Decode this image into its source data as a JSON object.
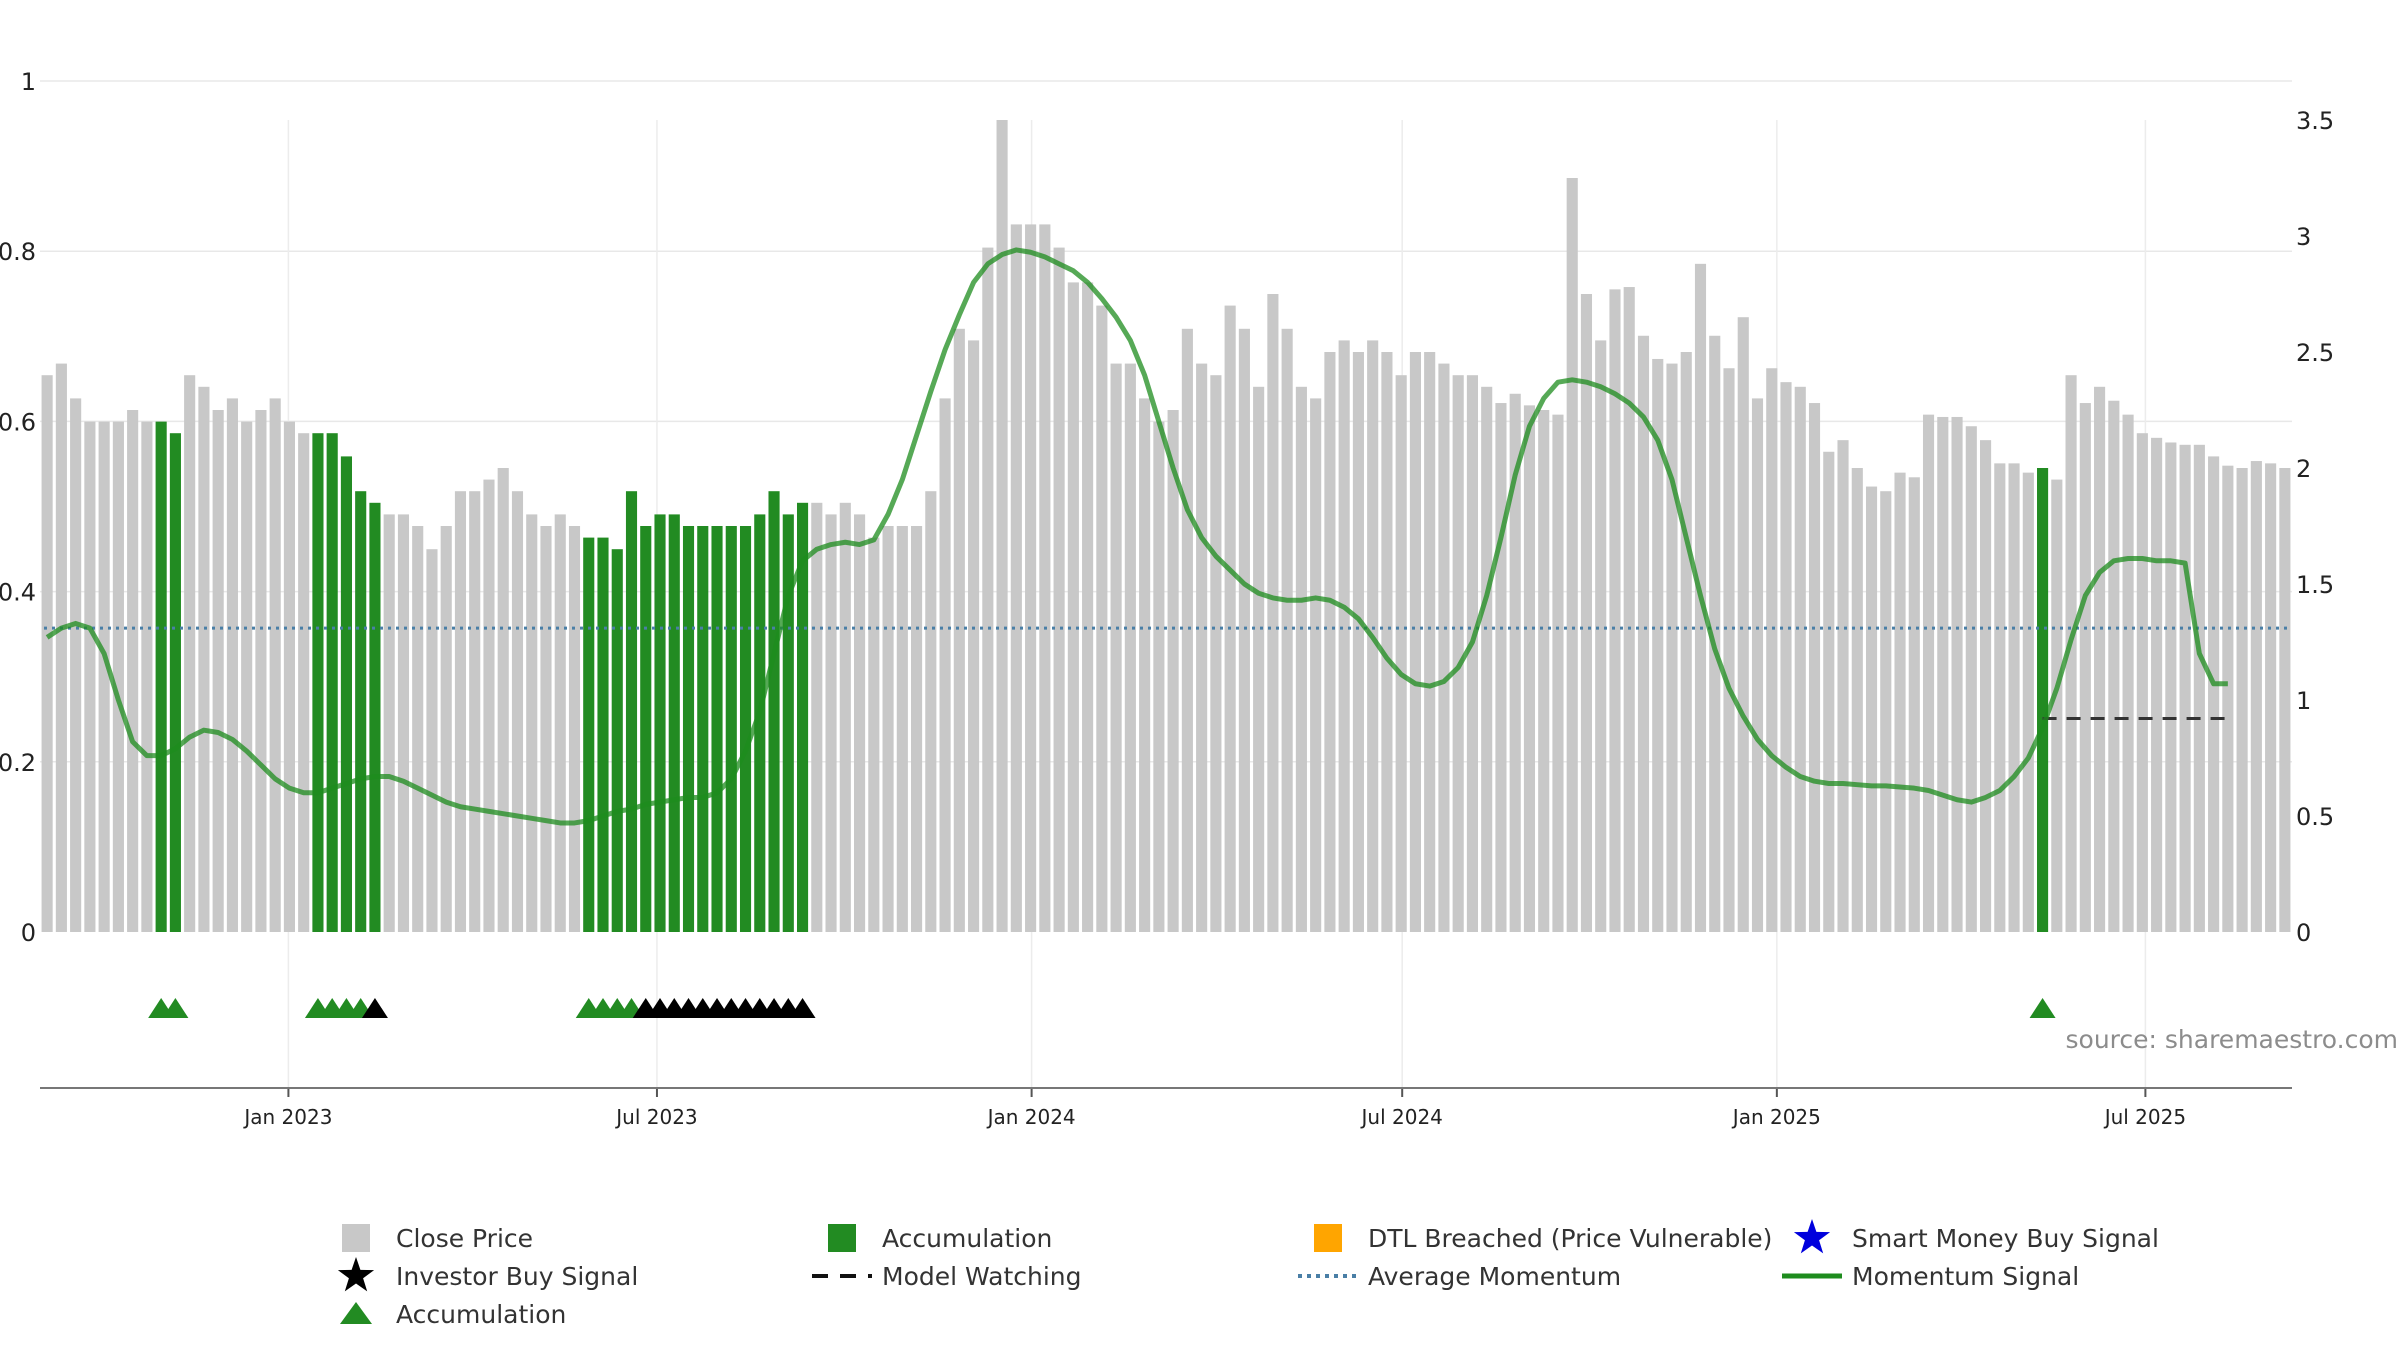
{
  "source_text": "source: sharemaestro.com",
  "colors": {
    "close_price": "#c8c8c8",
    "accumulation": "#228b22",
    "dtl": "#ffa500",
    "smart_money": "#0000dd",
    "momentum": "#1e8c1e",
    "avg_momentum": "#4a7fa6",
    "investor": "#000000",
    "model_watching": "#333333",
    "grid": "#e8e8e8"
  },
  "chart_data": {
    "type": "bar",
    "title": "",
    "x_start": "2022-09-01",
    "bar_interval_days": 7,
    "x_ticks": [
      "Jan 2023",
      "Jul 2023",
      "Jan 2024",
      "Jul 2024",
      "Jan 2025",
      "Jul 2025"
    ],
    "left_axis": {
      "range": [
        0,
        1
      ],
      "ticks": [
        "0",
        "0.2",
        "0.4",
        "0.6",
        "0.8",
        "1"
      ]
    },
    "right_axis": {
      "range": [
        0,
        3.5
      ],
      "ticks": [
        "0",
        "0.5",
        "1",
        "1.5",
        "2",
        "2.5",
        "3",
        "3.5"
      ]
    },
    "close_price": [
      2.4,
      2.45,
      2.3,
      2.2,
      2.2,
      2.2,
      2.25,
      2.2,
      2.2,
      2.15,
      2.4,
      2.35,
      2.25,
      2.3,
      2.2,
      2.25,
      2.3,
      2.2,
      2.15,
      2.15,
      2.15,
      2.05,
      1.9,
      1.85,
      1.8,
      1.8,
      1.75,
      1.65,
      1.75,
      1.9,
      1.9,
      1.95,
      2.0,
      1.9,
      1.8,
      1.75,
      1.8,
      1.75,
      1.7,
      1.7,
      1.65,
      1.9,
      1.75,
      1.8,
      1.8,
      1.75,
      1.75,
      1.75,
      1.75,
      1.75,
      1.8,
      1.9,
      1.8,
      1.85,
      1.85,
      1.8,
      1.85,
      1.8,
      1.7,
      1.75,
      1.75,
      1.75,
      1.9,
      2.3,
      2.6,
      2.55,
      2.95,
      3.5,
      3.05,
      3.05,
      3.05,
      2.95,
      2.8,
      2.8,
      2.7,
      2.45,
      2.45,
      2.3,
      2.2,
      2.25,
      2.6,
      2.45,
      2.4,
      2.7,
      2.6,
      2.35,
      2.75,
      2.6,
      2.35,
      2.3,
      2.5,
      2.55,
      2.5,
      2.55,
      2.5,
      2.4,
      2.5,
      2.5,
      2.45,
      2.4,
      2.4,
      2.35,
      2.28,
      2.32,
      2.27,
      2.25,
      2.23,
      3.25,
      2.75,
      2.55,
      2.77,
      2.78,
      2.57,
      2.47,
      2.45,
      2.5,
      2.88,
      2.57,
      2.43,
      2.65,
      2.3,
      2.43,
      2.37,
      2.35,
      2.28,
      2.07,
      2.12,
      2.0,
      1.92,
      1.9,
      1.98,
      1.96,
      2.23,
      2.22,
      2.22,
      2.18,
      2.12,
      2.02,
      2.02,
      1.98,
      2.0,
      1.95,
      2.4,
      2.28,
      2.35,
      2.29,
      2.23,
      2.15,
      2.13,
      2.11,
      2.1,
      2.1,
      2.05,
      2.01,
      2.0,
      2.03,
      2.02,
      2.0
    ],
    "accumulation_indices": [
      8,
      9,
      19,
      20,
      21,
      22,
      23,
      38,
      39,
      40,
      41,
      42,
      43,
      44,
      45,
      46,
      47,
      48,
      49,
      50,
      51,
      52,
      53,
      140
    ],
    "momentum_signal": [
      [
        0,
        1.27
      ],
      [
        1,
        1.31
      ],
      [
        2,
        1.33
      ],
      [
        3,
        1.31
      ],
      [
        4,
        1.2
      ],
      [
        5,
        1.0
      ],
      [
        6,
        0.82
      ],
      [
        7,
        0.76
      ],
      [
        8,
        0.76
      ],
      [
        9,
        0.79
      ],
      [
        10,
        0.84
      ],
      [
        11,
        0.87
      ],
      [
        12,
        0.86
      ],
      [
        13,
        0.83
      ],
      [
        14,
        0.78
      ],
      [
        15,
        0.72
      ],
      [
        16,
        0.66
      ],
      [
        17,
        0.62
      ],
      [
        18,
        0.6
      ],
      [
        19,
        0.6
      ],
      [
        20,
        0.62
      ],
      [
        21,
        0.64
      ],
      [
        22,
        0.66
      ],
      [
        23,
        0.67
      ],
      [
        24,
        0.67
      ],
      [
        25,
        0.65
      ],
      [
        26,
        0.62
      ],
      [
        27,
        0.59
      ],
      [
        28,
        0.56
      ],
      [
        29,
        0.54
      ],
      [
        30,
        0.53
      ],
      [
        31,
        0.52
      ],
      [
        32,
        0.51
      ],
      [
        33,
        0.5
      ],
      [
        34,
        0.49
      ],
      [
        35,
        0.48
      ],
      [
        36,
        0.47
      ],
      [
        37,
        0.47
      ],
      [
        38,
        0.48
      ],
      [
        39,
        0.5
      ],
      [
        40,
        0.52
      ],
      [
        41,
        0.53
      ],
      [
        42,
        0.55
      ],
      [
        43,
        0.56
      ],
      [
        44,
        0.57
      ],
      [
        45,
        0.58
      ],
      [
        46,
        0.58
      ],
      [
        47,
        0.6
      ],
      [
        48,
        0.66
      ],
      [
        49,
        0.78
      ],
      [
        50,
        0.95
      ],
      [
        51,
        1.2
      ],
      [
        52,
        1.45
      ],
      [
        53,
        1.6
      ],
      [
        54,
        1.65
      ],
      [
        55,
        1.67
      ],
      [
        56,
        1.68
      ],
      [
        57,
        1.67
      ],
      [
        58,
        1.69
      ],
      [
        59,
        1.8
      ],
      [
        60,
        1.95
      ],
      [
        61,
        2.14
      ],
      [
        62,
        2.33
      ],
      [
        63,
        2.51
      ],
      [
        64,
        2.66
      ],
      [
        65,
        2.8
      ],
      [
        66,
        2.88
      ],
      [
        67,
        2.92
      ],
      [
        68,
        2.94
      ],
      [
        69,
        2.93
      ],
      [
        70,
        2.91
      ],
      [
        71,
        2.88
      ],
      [
        72,
        2.85
      ],
      [
        73,
        2.8
      ],
      [
        74,
        2.73
      ],
      [
        75,
        2.65
      ],
      [
        76,
        2.55
      ],
      [
        77,
        2.4
      ],
      [
        78,
        2.2
      ],
      [
        79,
        2.0
      ],
      [
        80,
        1.82
      ],
      [
        81,
        1.7
      ],
      [
        82,
        1.62
      ],
      [
        83,
        1.56
      ],
      [
        84,
        1.5
      ],
      [
        85,
        1.46
      ],
      [
        86,
        1.44
      ],
      [
        87,
        1.43
      ],
      [
        88,
        1.43
      ],
      [
        89,
        1.44
      ],
      [
        90,
        1.43
      ],
      [
        91,
        1.4
      ],
      [
        92,
        1.35
      ],
      [
        93,
        1.27
      ],
      [
        94,
        1.18
      ],
      [
        95,
        1.11
      ],
      [
        96,
        1.07
      ],
      [
        97,
        1.06
      ],
      [
        98,
        1.08
      ],
      [
        99,
        1.14
      ],
      [
        100,
        1.25
      ],
      [
        101,
        1.45
      ],
      [
        102,
        1.7
      ],
      [
        103,
        1.97
      ],
      [
        104,
        2.18
      ],
      [
        105,
        2.3
      ],
      [
        106,
        2.37
      ],
      [
        107,
        2.38
      ],
      [
        108,
        2.37
      ],
      [
        109,
        2.35
      ],
      [
        110,
        2.32
      ],
      [
        111,
        2.28
      ],
      [
        112,
        2.22
      ],
      [
        113,
        2.12
      ],
      [
        114,
        1.95
      ],
      [
        115,
        1.7
      ],
      [
        116,
        1.45
      ],
      [
        117,
        1.22
      ],
      [
        118,
        1.05
      ],
      [
        119,
        0.93
      ],
      [
        120,
        0.83
      ],
      [
        121,
        0.76
      ],
      [
        122,
        0.71
      ],
      [
        123,
        0.67
      ],
      [
        124,
        0.65
      ],
      [
        125,
        0.64
      ],
      [
        126,
        0.64
      ],
      [
        127,
        0.635
      ],
      [
        128,
        0.63
      ],
      [
        129,
        0.63
      ],
      [
        130,
        0.625
      ],
      [
        131,
        0.62
      ],
      [
        132,
        0.61
      ],
      [
        133,
        0.59
      ],
      [
        134,
        0.57
      ],
      [
        135,
        0.56
      ],
      [
        136,
        0.58
      ],
      [
        137,
        0.61
      ],
      [
        138,
        0.67
      ],
      [
        139,
        0.75
      ],
      [
        140,
        0.88
      ],
      [
        141,
        1.05
      ],
      [
        142,
        1.26
      ],
      [
        143,
        1.45
      ],
      [
        144,
        1.55
      ],
      [
        145,
        1.6
      ],
      [
        146,
        1.61
      ],
      [
        147,
        1.61
      ],
      [
        148,
        1.6
      ],
      [
        149,
        1.6
      ],
      [
        150,
        1.59
      ],
      [
        151,
        1.2
      ],
      [
        152,
        1.07
      ],
      [
        153,
        1.07
      ]
    ],
    "average_momentum": 1.31,
    "model_watching": {
      "from_index": 140,
      "to_index": 153,
      "value": 0.92
    },
    "accumulation_triangles": [
      8,
      9,
      19,
      20,
      21,
      22,
      38,
      39,
      40,
      41,
      140
    ],
    "investor_buy_signals": [
      23,
      42,
      43,
      44,
      45,
      46,
      47,
      48,
      49,
      50,
      51,
      52,
      53
    ],
    "legend": [
      {
        "key": "close_price",
        "label": "Close Price"
      },
      {
        "key": "accumulation_bar",
        "label": "Accumulation"
      },
      {
        "key": "dtl",
        "label": "DTL Breached (Price Vulnerable)"
      },
      {
        "key": "smart_money",
        "label": "Smart Money Buy Signal"
      },
      {
        "key": "investor",
        "label": "Investor Buy Signal"
      },
      {
        "key": "model_watching",
        "label": "Model Watching"
      },
      {
        "key": "avg_momentum",
        "label": "Average Momentum"
      },
      {
        "key": "momentum",
        "label": "Momentum Signal"
      },
      {
        "key": "accumulation_tri",
        "label": "Accumulation"
      }
    ]
  }
}
